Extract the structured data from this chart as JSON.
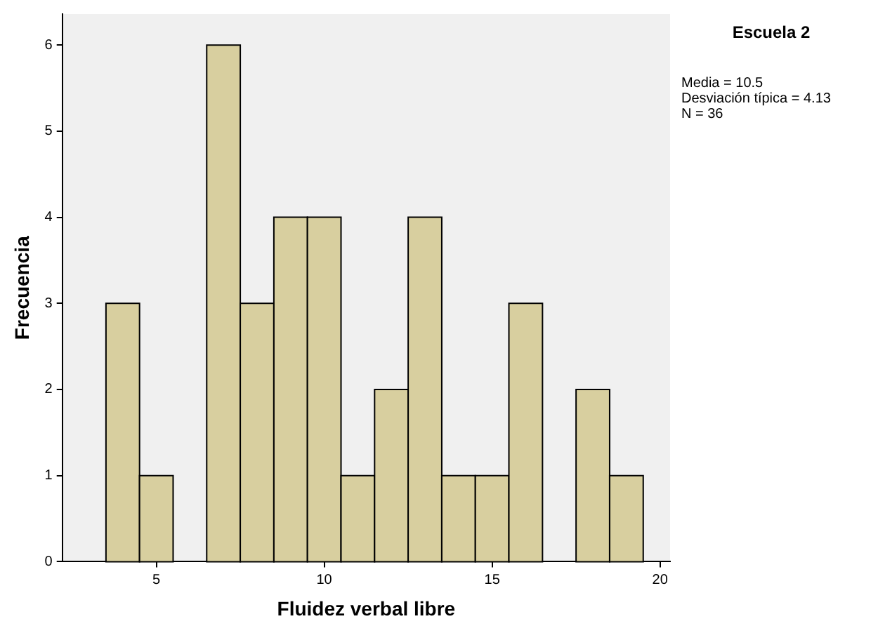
{
  "chart_data": {
    "type": "histogram",
    "title": "Escuela 2",
    "xlabel": "Fluidez verbal libre",
    "ylabel": "Frecuencia",
    "annotations": [
      "Media = 10.5",
      "Desviación típica = 4.13",
      "N = 36"
    ],
    "bins": [
      3.5,
      4.5,
      5.5,
      6.5,
      7.5,
      8.5,
      9.5,
      10.5,
      11.5,
      12.5,
      13.5,
      14.5,
      15.5,
      16.5,
      17.5,
      18.5,
      19.5
    ],
    "values": [
      3,
      1,
      0,
      6,
      3,
      4,
      4,
      1,
      2,
      4,
      1,
      1,
      3,
      0,
      2,
      1
    ],
    "color": "#d8cf9f",
    "xlim": [
      2.2,
      20.3
    ],
    "xticks": [
      5,
      10,
      15,
      20
    ],
    "ylim": [
      0,
      6.36
    ],
    "yticks": [
      0,
      1,
      2,
      3,
      4,
      5,
      6
    ],
    "grid": false,
    "legend": false
  }
}
